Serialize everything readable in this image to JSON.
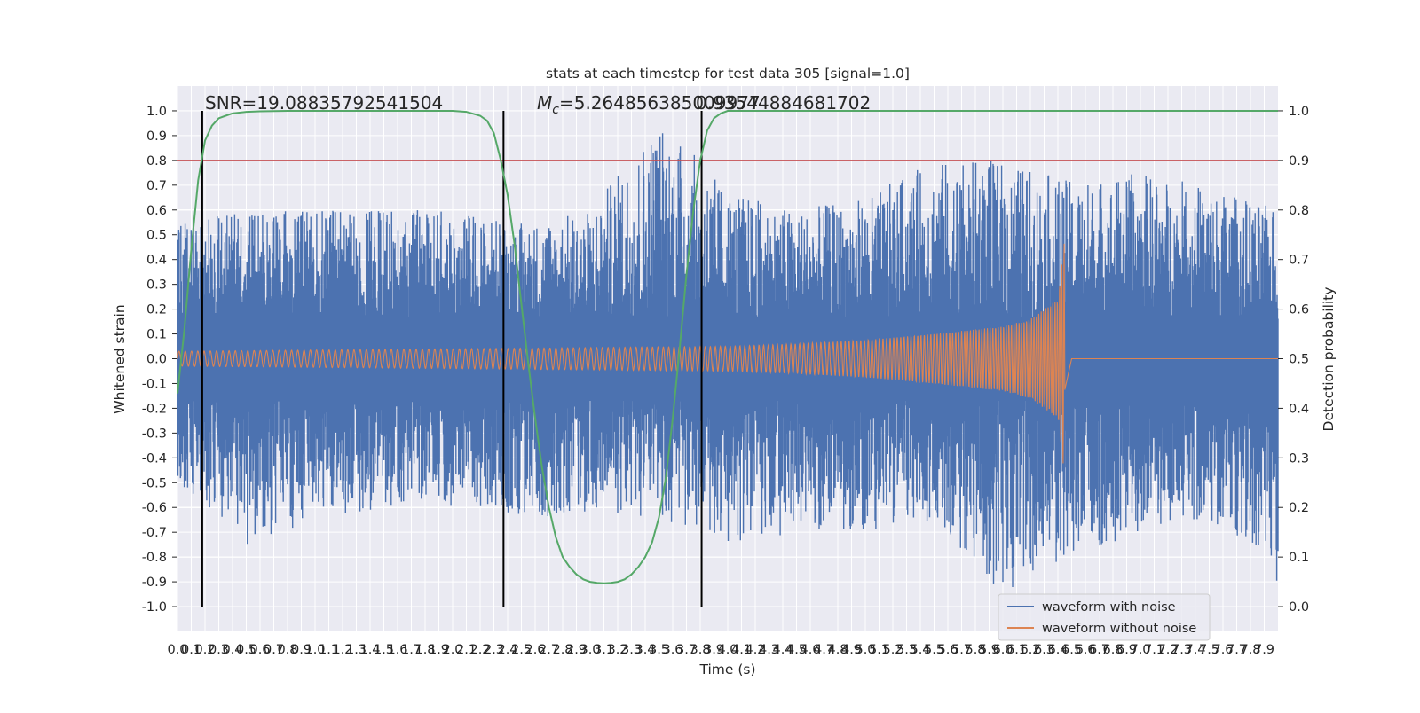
{
  "chart_data": {
    "type": "line",
    "title": "stats at each timestep for test data 305 [signal=1.0]",
    "xlabel": "Time (s)",
    "ylabel_left": "Whitened strain",
    "ylabel_right": "Detection probability",
    "xlim": [
      0.0,
      8.0
    ],
    "ylim_left": [
      -1.1,
      1.1
    ],
    "ylim_right": [
      -0.05,
      1.05
    ],
    "x_ticks": [
      0.0,
      0.1,
      0.2,
      0.3,
      0.4,
      0.5,
      0.6,
      0.7,
      0.8,
      0.9,
      1.0,
      1.1,
      1.2,
      1.3,
      1.4,
      1.5,
      1.6,
      1.7,
      1.8,
      1.9,
      2.0,
      2.1,
      2.2,
      2.3,
      2.4,
      2.5,
      2.6,
      2.7,
      2.8,
      2.9,
      3.0,
      3.1,
      3.2,
      3.3,
      3.4,
      3.5,
      3.6,
      3.7,
      3.8,
      3.9,
      4.0,
      4.1,
      4.2,
      4.3,
      4.4,
      4.5,
      4.6,
      4.7,
      4.8,
      4.9,
      5.0,
      5.1,
      5.2,
      5.3,
      5.4,
      5.5,
      5.6,
      5.7,
      5.8,
      5.9,
      6.0,
      6.1,
      6.2,
      6.3,
      6.4,
      6.5,
      6.6,
      6.7,
      6.8,
      6.9,
      7.0,
      7.1,
      7.2,
      7.3,
      7.4,
      7.5,
      7.6,
      7.7,
      7.8,
      7.9
    ],
    "y_ticks_left": [
      1.0,
      0.9,
      0.8,
      0.7,
      0.6,
      0.5,
      0.4,
      0.3,
      0.2,
      0.1,
      0.0,
      -0.1,
      -0.2,
      -0.3,
      -0.4,
      -0.5,
      -0.6,
      -0.7,
      -0.8,
      -0.9,
      -1.0
    ],
    "y_ticks_right": [
      1.0,
      0.9,
      0.8,
      0.7,
      0.6,
      0.5,
      0.4,
      0.3,
      0.2,
      0.1,
      0.0
    ],
    "annotations": {
      "snr": "SNR=19.08835792541504",
      "mc_label": "M",
      "mc_sub": "c",
      "mc_value": "=5.264856385009977",
      "overlap": "0.93544884681702"
    },
    "threshold": 0.8,
    "event_lines_x": [
      0.18,
      2.37,
      3.81
    ],
    "event_line_range": [
      -1.0,
      1.0
    ],
    "noise_envelope": {
      "x": [
        0.0,
        0.5,
        1.0,
        1.5,
        2.0,
        2.5,
        3.0,
        3.5,
        4.0,
        4.5,
        5.0,
        5.5,
        6.0,
        6.5,
        7.0,
        7.5,
        8.0
      ],
      "upper": [
        0.55,
        0.6,
        0.6,
        0.6,
        0.6,
        0.55,
        0.6,
        0.98,
        0.68,
        0.6,
        0.65,
        0.8,
        0.8,
        0.72,
        0.75,
        0.7,
        0.6
      ],
      "lower": [
        -0.5,
        -0.75,
        -0.65,
        -0.6,
        -0.6,
        -0.65,
        -0.62,
        -0.65,
        -0.75,
        -0.7,
        -0.7,
        -0.65,
        -0.95,
        -0.8,
        -0.7,
        -0.65,
        -0.95
      ]
    },
    "clean_envelope": {
      "x": [
        0.0,
        1.0,
        2.0,
        3.0,
        4.0,
        4.5,
        5.0,
        5.5,
        6.0,
        6.2,
        6.4,
        6.45,
        6.5,
        8.0
      ],
      "amplitude": [
        0.03,
        0.035,
        0.04,
        0.045,
        0.05,
        0.06,
        0.075,
        0.1,
        0.13,
        0.16,
        0.24,
        0.5,
        0.0,
        0.0
      ]
    },
    "series": [
      {
        "name": "Detection probability",
        "axis": "right",
        "color": "#55a868",
        "x": [
          0.0,
          0.05,
          0.1,
          0.15,
          0.2,
          0.25,
          0.3,
          0.35,
          0.4,
          0.5,
          0.6,
          0.8,
          1.0,
          1.5,
          2.0,
          2.1,
          2.2,
          2.25,
          2.3,
          2.35,
          2.4,
          2.45,
          2.5,
          2.55,
          2.6,
          2.65,
          2.7,
          2.75,
          2.8,
          2.85,
          2.9,
          2.95,
          3.0,
          3.05,
          3.1,
          3.15,
          3.2,
          3.25,
          3.3,
          3.35,
          3.4,
          3.45,
          3.5,
          3.55,
          3.6,
          3.65,
          3.7,
          3.75,
          3.8,
          3.85,
          3.9,
          3.95,
          4.0,
          4.05,
          4.1,
          4.5,
          5.0,
          6.0,
          7.0,
          8.0
        ],
        "y": [
          0.43,
          0.56,
          0.72,
          0.86,
          0.94,
          0.97,
          0.985,
          0.99,
          0.995,
          0.998,
          0.999,
          1.0,
          1.0,
          1.0,
          1.0,
          0.998,
          0.99,
          0.98,
          0.955,
          0.9,
          0.83,
          0.73,
          0.61,
          0.49,
          0.38,
          0.28,
          0.2,
          0.14,
          0.1,
          0.08,
          0.065,
          0.055,
          0.05,
          0.048,
          0.047,
          0.048,
          0.05,
          0.055,
          0.065,
          0.08,
          0.1,
          0.13,
          0.18,
          0.26,
          0.38,
          0.52,
          0.67,
          0.8,
          0.9,
          0.96,
          0.985,
          0.995,
          1.0,
          1.0,
          1.0,
          1.0,
          1.0,
          1.0,
          1.0,
          1.0
        ]
      },
      {
        "name": "waveform with noise",
        "axis": "left",
        "color": "#4c72b0"
      },
      {
        "name": "waveform without noise",
        "axis": "left",
        "color": "#dd8452"
      }
    ],
    "colors": {
      "background": "#eaeaf2",
      "grid": "#ffffff",
      "threshold": "#c44e52",
      "event_line": "#000000"
    },
    "legend": {
      "placement": "lower-right",
      "entries": [
        "waveform with noise",
        "waveform without noise"
      ]
    }
  }
}
